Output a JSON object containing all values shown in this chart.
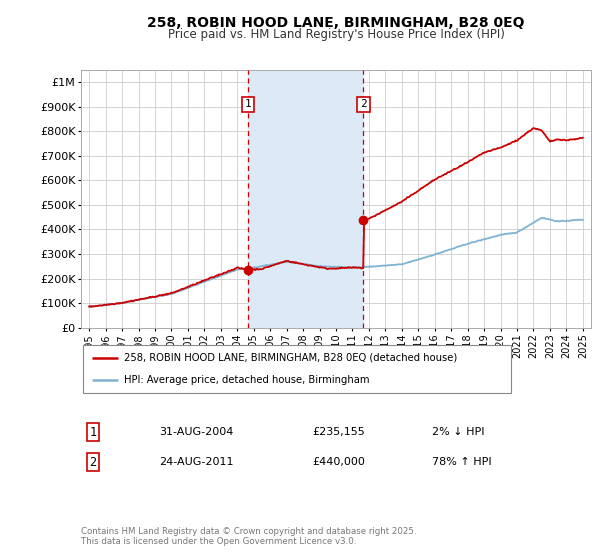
{
  "title": "258, ROBIN HOOD LANE, BIRMINGHAM, B28 0EQ",
  "subtitle": "Price paid vs. HM Land Registry's House Price Index (HPI)",
  "red_line_label": "258, ROBIN HOOD LANE, BIRMINGHAM, B28 0EQ (detached house)",
  "blue_line_label": "HPI: Average price, detached house, Birmingham",
  "marker1_date_x": 2004.667,
  "marker1_label": "1",
  "marker1_date_str": "31-AUG-2004",
  "marker1_price": "£235,155",
  "marker1_pct": "2% ↓ HPI",
  "marker2_date_x": 2011.667,
  "marker2_label": "2",
  "marker2_date_str": "24-AUG-2011",
  "marker2_price": "£440,000",
  "marker2_pct": "78% ↑ HPI",
  "copyright_text": "Contains HM Land Registry data © Crown copyright and database right 2025.\nThis data is licensed under the Open Government Licence v3.0.",
  "xlim": [
    1994.5,
    2025.5
  ],
  "ylim": [
    0,
    1050000
  ],
  "yticks": [
    0,
    100000,
    200000,
    300000,
    400000,
    500000,
    600000,
    700000,
    800000,
    900000,
    1000000
  ],
  "ytick_labels": [
    "£0",
    "£100K",
    "£200K",
    "£300K",
    "£400K",
    "£500K",
    "£600K",
    "£700K",
    "£800K",
    "£900K",
    "£1M"
  ],
  "xticks": [
    1995,
    1996,
    1997,
    1998,
    1999,
    2000,
    2001,
    2002,
    2003,
    2004,
    2005,
    2006,
    2007,
    2008,
    2009,
    2010,
    2011,
    2012,
    2013,
    2014,
    2015,
    2016,
    2017,
    2018,
    2019,
    2020,
    2021,
    2022,
    2023,
    2024,
    2025
  ],
  "background_color": "#ffffff",
  "shaded_region_color": "#dce9f7",
  "red_color": "#cc0000",
  "blue_color": "#7fb3d3",
  "marker_box_color": "#cc0000",
  "grid_color": "#cccccc",
  "marker1_red_y": 235155,
  "marker2_red_y": 440000
}
